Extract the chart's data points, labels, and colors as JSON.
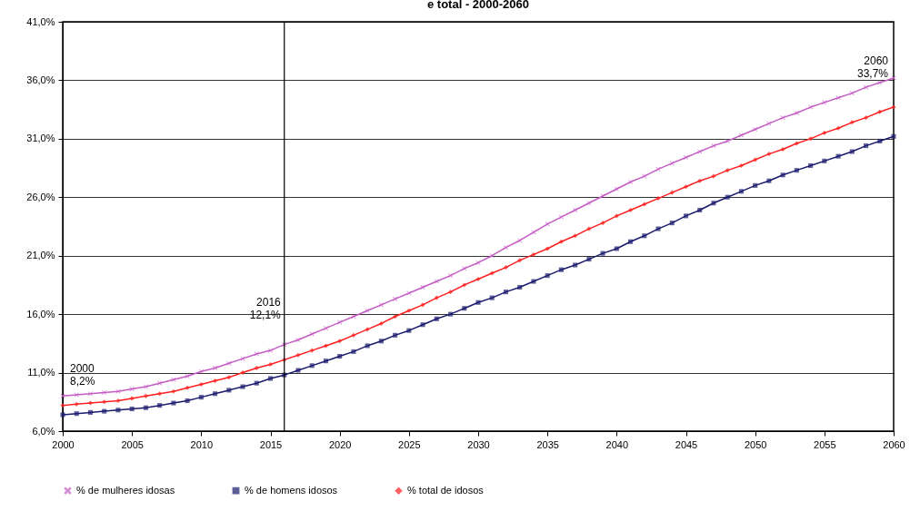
{
  "chart_data": {
    "type": "line",
    "title": "e total - 2000-2060",
    "x": [
      2000,
      2001,
      2002,
      2003,
      2004,
      2005,
      2006,
      2007,
      2008,
      2009,
      2010,
      2011,
      2012,
      2013,
      2014,
      2015,
      2016,
      2017,
      2018,
      2019,
      2020,
      2021,
      2022,
      2023,
      2024,
      2025,
      2026,
      2027,
      2028,
      2029,
      2030,
      2031,
      2032,
      2033,
      2034,
      2035,
      2036,
      2037,
      2038,
      2039,
      2040,
      2041,
      2042,
      2043,
      2044,
      2045,
      2046,
      2047,
      2048,
      2049,
      2050,
      2051,
      2052,
      2053,
      2054,
      2055,
      2056,
      2057,
      2058,
      2059,
      2060
    ],
    "series": [
      {
        "name": "% de mulheres idosas",
        "color": "#c45cc4",
        "marker": "cross",
        "values": [
          9.0,
          9.1,
          9.2,
          9.3,
          9.4,
          9.6,
          9.8,
          10.1,
          10.4,
          10.7,
          11.1,
          11.4,
          11.8,
          12.2,
          12.6,
          12.9,
          13.4,
          13.8,
          14.3,
          14.8,
          15.3,
          15.8,
          16.3,
          16.8,
          17.3,
          17.8,
          18.3,
          18.8,
          19.3,
          19.9,
          20.4,
          21.0,
          21.7,
          22.3,
          23.0,
          23.7,
          24.3,
          24.9,
          25.5,
          26.1,
          26.7,
          27.3,
          27.8,
          28.4,
          28.9,
          29.4,
          29.9,
          30.4,
          30.8,
          31.3,
          31.8,
          32.3,
          32.8,
          33.2,
          33.7,
          34.1,
          34.5,
          34.9,
          35.4,
          35.8,
          36.2
        ]
      },
      {
        "name": "% de homens idosos",
        "color": "#1a1a6e",
        "marker": "square",
        "values": [
          7.4,
          7.5,
          7.6,
          7.7,
          7.8,
          7.9,
          8.0,
          8.2,
          8.4,
          8.6,
          8.9,
          9.2,
          9.5,
          9.8,
          10.1,
          10.5,
          10.8,
          11.2,
          11.6,
          12.0,
          12.4,
          12.8,
          13.3,
          13.7,
          14.2,
          14.6,
          15.1,
          15.6,
          16.0,
          16.5,
          17.0,
          17.4,
          17.9,
          18.3,
          18.8,
          19.3,
          19.8,
          20.2,
          20.7,
          21.2,
          21.6,
          22.2,
          22.7,
          23.3,
          23.8,
          24.4,
          24.9,
          25.5,
          26.0,
          26.5,
          27.0,
          27.4,
          27.9,
          28.3,
          28.7,
          29.1,
          29.5,
          29.9,
          30.4,
          30.8,
          31.2
        ]
      },
      {
        "name": "% total de idosos",
        "color": "#ff1f1f",
        "marker": "diamond",
        "values": [
          8.2,
          8.3,
          8.4,
          8.5,
          8.6,
          8.8,
          9.0,
          9.2,
          9.4,
          9.7,
          10.0,
          10.3,
          10.6,
          11.0,
          11.4,
          11.7,
          12.1,
          12.5,
          12.9,
          13.3,
          13.7,
          14.2,
          14.7,
          15.2,
          15.8,
          16.3,
          16.8,
          17.4,
          17.9,
          18.5,
          19.0,
          19.5,
          20.0,
          20.6,
          21.1,
          21.6,
          22.2,
          22.7,
          23.3,
          23.8,
          24.4,
          24.9,
          25.4,
          25.9,
          26.4,
          26.9,
          27.4,
          27.8,
          28.3,
          28.7,
          29.2,
          29.7,
          30.1,
          30.6,
          31.0,
          31.5,
          31.9,
          32.4,
          32.8,
          33.3,
          33.7
        ]
      }
    ],
    "xlim": [
      2000,
      2060
    ],
    "xticks": [
      2000,
      2005,
      2010,
      2015,
      2020,
      2025,
      2030,
      2035,
      2040,
      2045,
      2050,
      2055,
      2060
    ],
    "ylim": [
      6,
      41
    ],
    "yticks": [
      {
        "value": 6,
        "label": "6,0%"
      },
      {
        "value": 11,
        "label": "11,0%"
      },
      {
        "value": 16,
        "label": "16,0%"
      },
      {
        "value": 21,
        "label": "21,0%"
      },
      {
        "value": 26,
        "label": "26,0%"
      },
      {
        "value": 31,
        "label": "31,0%"
      },
      {
        "value": 36,
        "label": "36,0%"
      },
      {
        "value": 41,
        "label": "41,0%"
      }
    ],
    "grid": "y",
    "legend": "bottom",
    "ref_lines": [
      {
        "axis": "x",
        "value": 2016,
        "label": "2016\n12,1%",
        "color": "#000000"
      }
    ],
    "annotations": [
      {
        "text": "2000\n8,2%",
        "x": 2000,
        "y": 8.2
      },
      {
        "text": "2060\n33,7%",
        "x": 2060,
        "y": 33.7
      }
    ]
  }
}
